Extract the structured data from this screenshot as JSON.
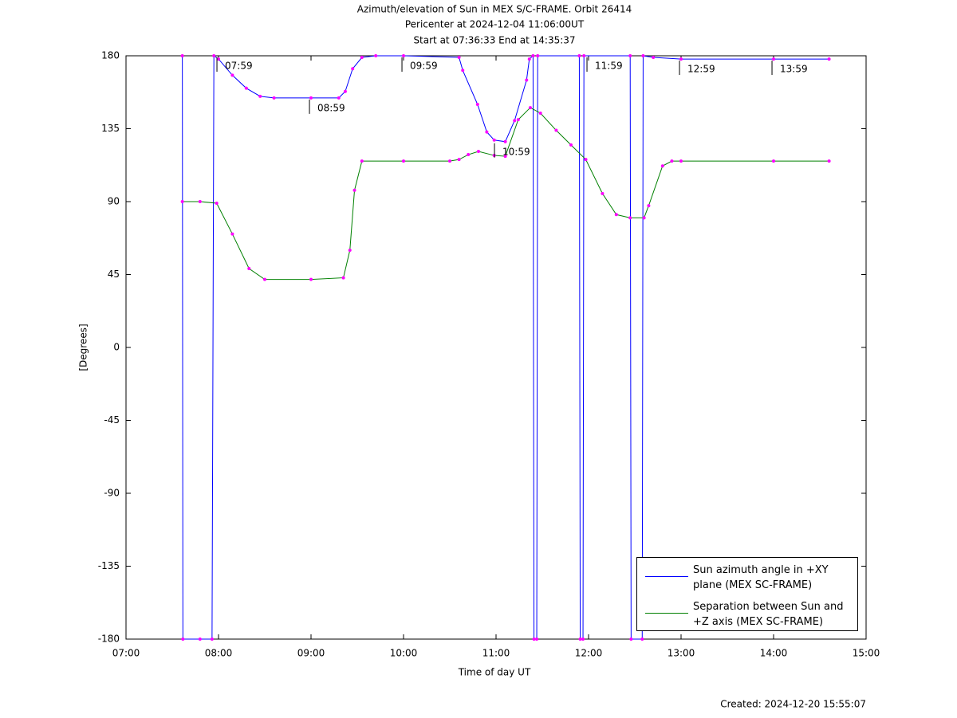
{
  "chart_data": {
    "type": "line",
    "title": "Azimuth/elevation of Sun in MEX S/C-FRAME.  Orbit 26414",
    "subtitles": [
      "Pericenter at 2024-12-04 11:06:00UT",
      "Start at 07:36:33 End at 14:35:37"
    ],
    "xlabel": "Time of day UT",
    "ylabel": "[Degrees]",
    "footnote": "Created: 2024-12-20 15:55:07",
    "xlim": [
      7,
      15
    ],
    "xticks": [
      {
        "value": 7,
        "label": "07:00"
      },
      {
        "value": 8,
        "label": "08:00"
      },
      {
        "value": 9,
        "label": "09:00"
      },
      {
        "value": 10,
        "label": "10:00"
      },
      {
        "value": 11,
        "label": "11:00"
      },
      {
        "value": 12,
        "label": "12:00"
      },
      {
        "value": 13,
        "label": "13:00"
      },
      {
        "value": 14,
        "label": "14:00"
      },
      {
        "value": 15,
        "label": "15:00"
      }
    ],
    "ylim": [
      -180,
      180
    ],
    "yticks": [
      180,
      135,
      90,
      45,
      0,
      -45,
      -90,
      -135,
      -180
    ],
    "grid": false,
    "legend": "lower right",
    "marker_color": "#ff00ff",
    "series": [
      {
        "name": "Sun azimuth angle in +XY plane (MEX SC-FRAME)",
        "color": "#0000ff",
        "x": [
          7.609,
          7.615,
          7.8,
          7.93,
          7.95,
          8.0,
          8.15,
          8.3,
          8.45,
          8.6,
          9.0,
          9.3,
          9.37,
          9.45,
          9.55,
          9.7,
          10.0,
          10.6,
          10.64,
          10.8,
          10.9,
          10.98,
          11.1,
          11.2,
          11.33,
          11.36,
          11.4,
          11.41,
          11.44,
          11.45,
          11.9,
          11.91,
          11.94,
          11.95,
          12.45,
          12.46,
          12.58,
          12.59,
          12.7,
          13.0,
          14.0,
          14.6
        ],
        "values": [
          180,
          -180,
          -180,
          -180,
          180,
          178,
          168,
          160,
          155,
          154,
          154,
          154,
          158,
          172,
          179,
          180,
          180,
          179,
          171,
          150,
          133,
          128,
          127,
          140,
          165,
          178,
          180,
          -180,
          -180,
          180,
          180,
          -180,
          -180,
          180,
          180,
          -180,
          -180,
          180,
          179,
          178,
          178,
          178
        ]
      },
      {
        "name": "Separation between Sun and +Z axis (MEX SC-FRAME)",
        "color": "#008000",
        "x": [
          7.609,
          7.8,
          7.98,
          8.15,
          8.33,
          8.5,
          9.0,
          9.35,
          9.42,
          9.47,
          9.55,
          10.0,
          10.5,
          10.6,
          10.7,
          10.81,
          10.98,
          11.1,
          11.24,
          11.37,
          11.48,
          11.65,
          11.81,
          11.97,
          12.15,
          12.3,
          12.45,
          12.6,
          12.65,
          12.8,
          12.9,
          13.0,
          14.0,
          14.6
        ],
        "values": [
          90,
          90,
          89,
          70,
          48.7,
          42,
          42,
          43,
          60,
          97,
          115,
          115,
          115,
          116,
          119,
          121,
          118.5,
          118,
          140.6,
          148,
          144.6,
          134,
          125,
          116,
          95,
          82,
          80,
          80,
          87.5,
          112,
          115,
          115,
          115,
          115
        ]
      }
    ],
    "annotations": [
      {
        "text": "07:59",
        "x": 7.983,
        "y": 180
      },
      {
        "text": "08:59",
        "x": 8.983,
        "y": 154
      },
      {
        "text": "09:59",
        "x": 9.983,
        "y": 180
      },
      {
        "text": "10:59",
        "x": 10.983,
        "y": 127
      },
      {
        "text": "11:59",
        "x": 11.983,
        "y": 180
      },
      {
        "text": "12:59",
        "x": 12.983,
        "y": 178
      },
      {
        "text": "13:59",
        "x": 13.983,
        "y": 178
      }
    ]
  }
}
